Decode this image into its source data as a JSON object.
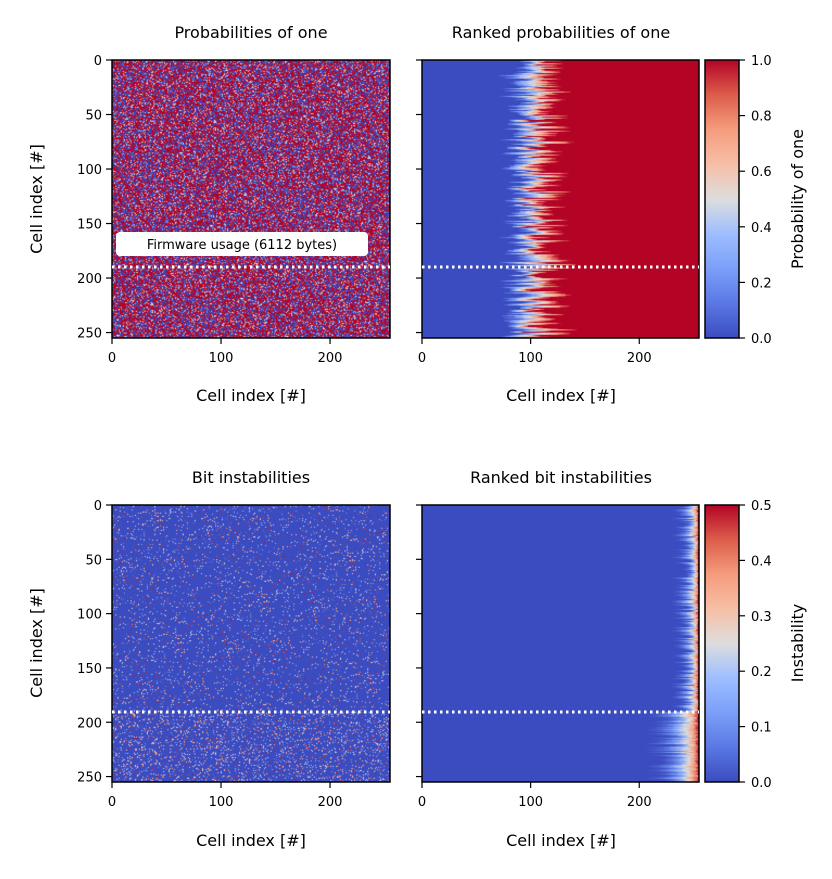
{
  "colormap": {
    "low": "#3b4cc0",
    "mid": "#dddddd",
    "high": "#b40426"
  },
  "panels": {
    "p1": {
      "title": "Probabilities of one",
      "xlabel": "Cell index [#]",
      "ylabel": "Cell index [#]"
    },
    "p2": {
      "title": "Ranked probabilities of one",
      "xlabel": "Cell index [#]"
    },
    "p3": {
      "title": "Bit instabilities",
      "xlabel": "Cell index [#]",
      "ylabel": "Cell index [#]"
    },
    "p4": {
      "title": "Ranked bit instabilities",
      "xlabel": "Cell index [#]"
    }
  },
  "annotation": "Firmware usage (6112 bytes)",
  "colorbars": {
    "prob": {
      "label": "Probability of one",
      "ticks": [
        "0.0",
        "0.2",
        "0.4",
        "0.6",
        "0.8",
        "1.0"
      ]
    },
    "inst": {
      "label": "Instability",
      "ticks": [
        "0.0",
        "0.1",
        "0.2",
        "0.3",
        "0.4",
        "0.5"
      ]
    }
  },
  "chart_data": [
    {
      "type": "heatmap",
      "title": "Probabilities of one",
      "xlabel": "Cell index [#]",
      "ylabel": "Cell index [#]",
      "xlim": [
        0,
        255
      ],
      "ylim": [
        255,
        0
      ],
      "xticks": [
        0,
        100,
        200
      ],
      "yticks": [
        0,
        50,
        100,
        150,
        200,
        250
      ],
      "value_range": [
        0.0,
        1.0
      ],
      "pattern": "random bits, mostly 0 or 1 with occasional intermediate values",
      "hline_y": 191,
      "annotation": "Firmware usage (6112 bytes)"
    },
    {
      "type": "heatmap",
      "title": "Ranked probabilities of one",
      "xlabel": "Cell index [#]",
      "xlim": [
        0,
        255
      ],
      "ylim": [
        255,
        0
      ],
      "xticks": [
        0,
        100,
        200
      ],
      "yticks": [
        0,
        50,
        100,
        150,
        200,
        250
      ],
      "value_range": [
        0.0,
        1.0
      ],
      "pattern": "each row sorted ascending; transition from 0 to 1 near column 90-110",
      "hline_y": 191,
      "colorbar": {
        "label": "Probability of one",
        "range": [
          0.0,
          1.0
        ],
        "ticks": [
          0.0,
          0.2,
          0.4,
          0.6,
          0.8,
          1.0
        ]
      }
    },
    {
      "type": "heatmap",
      "title": "Bit instabilities",
      "xlabel": "Cell index [#]",
      "ylabel": "Cell index [#]",
      "xlim": [
        0,
        255
      ],
      "ylim": [
        255,
        0
      ],
      "xticks": [
        0,
        100,
        200
      ],
      "yticks": [
        0,
        50,
        100,
        150,
        200,
        250
      ],
      "value_range": [
        0.0,
        0.5
      ],
      "pattern": "mostly 0 with sparse unstable cells; denser below row 191",
      "hline_y": 191
    },
    {
      "type": "heatmap",
      "title": "Ranked bit instabilities",
      "xlabel": "Cell index [#]",
      "xlim": [
        0,
        255
      ],
      "ylim": [
        255,
        0
      ],
      "xticks": [
        0,
        100,
        200
      ],
      "yticks": [
        0,
        50,
        100,
        150,
        200,
        250
      ],
      "value_range": [
        0.0,
        0.5
      ],
      "pattern": "each row sorted ascending; unstable tail in last ~10-60 columns",
      "hline_y": 191,
      "colorbar": {
        "label": "Instability",
        "range": [
          0.0,
          0.5
        ],
        "ticks": [
          0.0,
          0.1,
          0.2,
          0.3,
          0.4,
          0.5
        ]
      }
    }
  ]
}
